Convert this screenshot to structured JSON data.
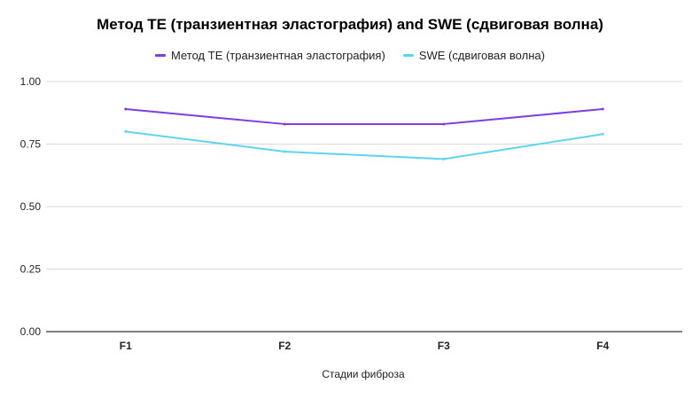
{
  "chart_data": {
    "type": "line",
    "title": "Метод TE (транзиентная эластография) and SWE (сдвиговая волна)",
    "xlabel": "Стадии фиброза",
    "ylabel": "",
    "categories": [
      "F1",
      "F2",
      "F3",
      "F4"
    ],
    "ylim": [
      0,
      1
    ],
    "yticks": [
      "0.00",
      "0.25",
      "0.50",
      "0.75",
      "1.00"
    ],
    "grid": true,
    "legend_position": "top",
    "series": [
      {
        "name": "Метод TE (транзиентная эластография)",
        "color": "#7b3fe4",
        "values": [
          0.89,
          0.83,
          0.83,
          0.89
        ]
      },
      {
        "name": "SWE (сдвиговая волна)",
        "color": "#5fd4f0",
        "values": [
          0.8,
          0.72,
          0.69,
          0.79
        ]
      }
    ]
  }
}
